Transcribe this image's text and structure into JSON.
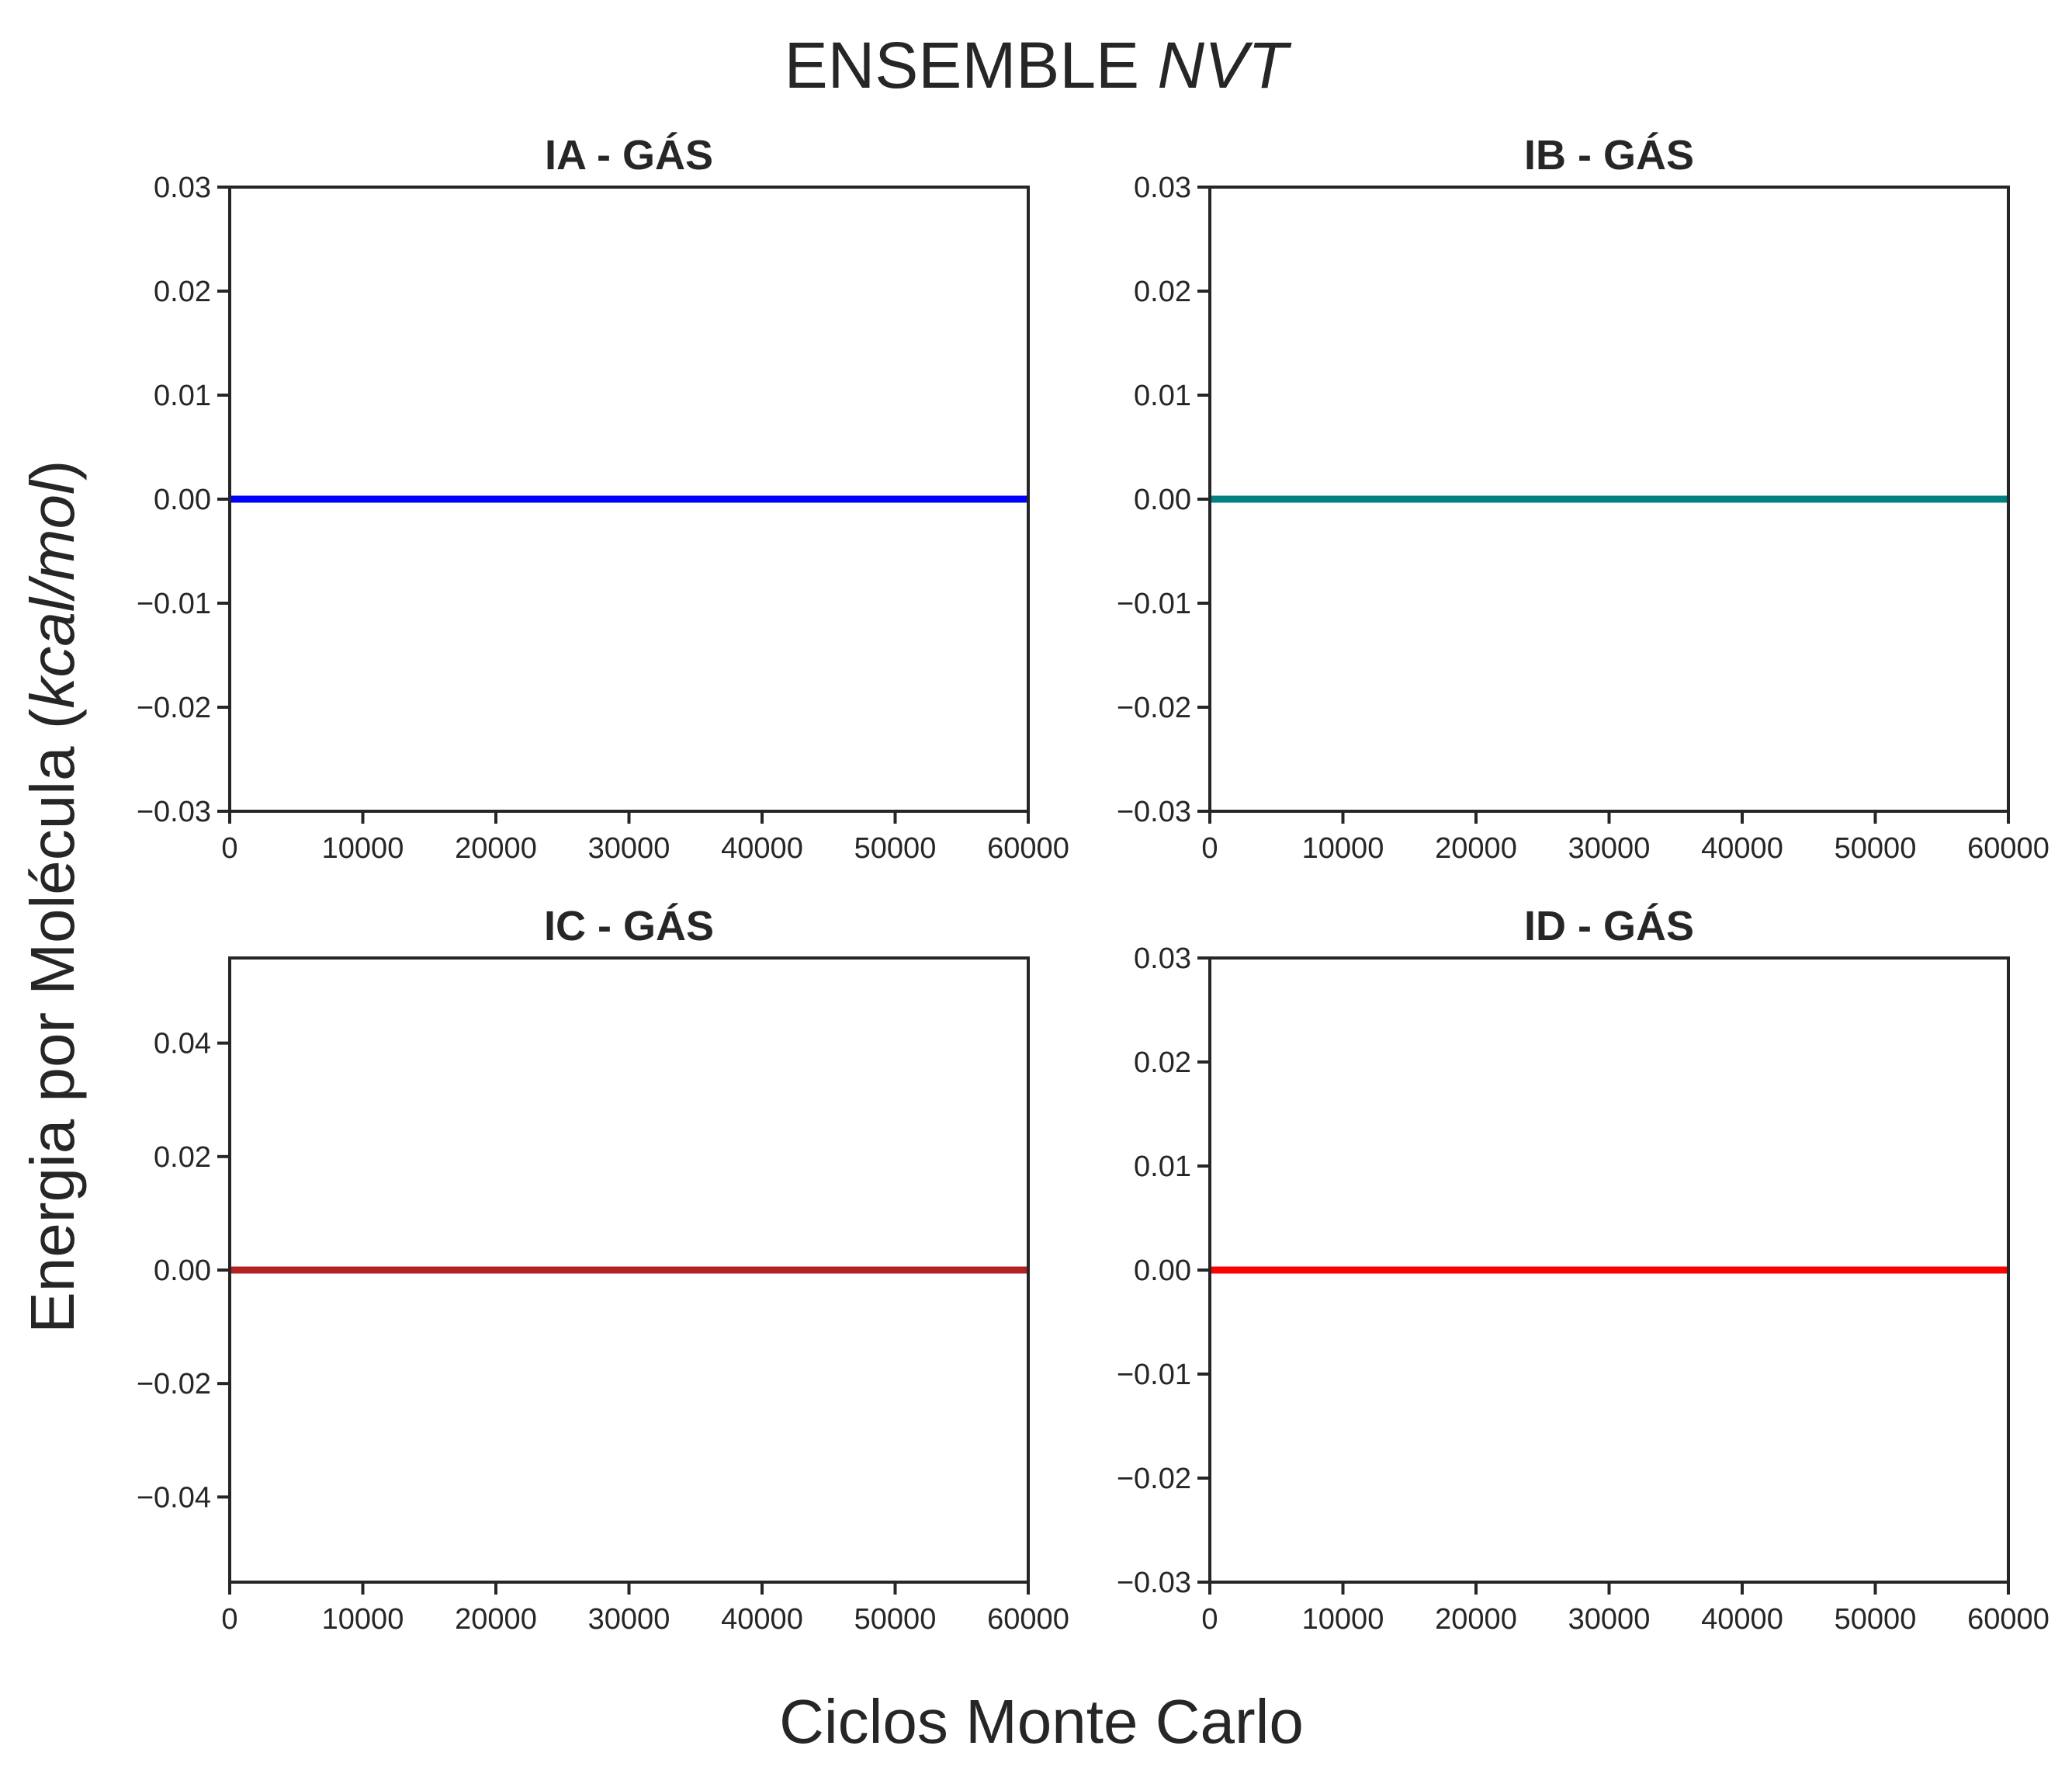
{
  "figure": {
    "title_main": "ENSEMBLE ",
    "title_italic": "NVT",
    "xlabel": "Ciclos Monte Carlo",
    "ylabel_main": "Energia por Molécula (",
    "ylabel_italic": "kcal/mol",
    "ylabel_end": ")"
  },
  "chart_data": [
    {
      "type": "line",
      "title": "IA - GÁS",
      "x": [
        0,
        60000
      ],
      "series": [
        {
          "values": [
            0,
            0
          ],
          "color": "#0000ff"
        }
      ],
      "xlim": [
        0,
        60000
      ],
      "ylim": [
        -0.03,
        0.03
      ],
      "xticks": [
        0,
        10000,
        20000,
        30000,
        40000,
        50000,
        60000
      ],
      "yticks": [
        0.03,
        0.02,
        0.01,
        0.0,
        -0.01,
        -0.02,
        -0.03
      ],
      "xtick_labels": [
        "0",
        "10000",
        "20000",
        "30000",
        "40000",
        "50000",
        "60000"
      ],
      "ytick_labels": [
        "0.03",
        "0.02",
        "0.01",
        "0.00",
        "−0.01",
        "−0.02",
        "−0.03"
      ],
      "grid": false
    },
    {
      "type": "line",
      "title": "IB - GÁS",
      "x": [
        0,
        60000
      ],
      "series": [
        {
          "values": [
            0,
            0
          ],
          "color": "#008080"
        }
      ],
      "xlim": [
        0,
        60000
      ],
      "ylim": [
        -0.03,
        0.03
      ],
      "xticks": [
        0,
        10000,
        20000,
        30000,
        40000,
        50000,
        60000
      ],
      "yticks": [
        0.03,
        0.02,
        0.01,
        0.0,
        -0.01,
        -0.02,
        -0.03
      ],
      "xtick_labels": [
        "0",
        "10000",
        "20000",
        "30000",
        "40000",
        "50000",
        "60000"
      ],
      "ytick_labels": [
        "0.03",
        "0.02",
        "0.01",
        "0.00",
        "−0.01",
        "−0.02",
        "−0.03"
      ],
      "grid": false
    },
    {
      "type": "line",
      "title": "IC - GÁS",
      "x": [
        0,
        60000
      ],
      "series": [
        {
          "values": [
            0,
            0
          ],
          "color": "#b22222"
        }
      ],
      "xlim": [
        0,
        60000
      ],
      "ylim": [
        -0.055,
        0.055
      ],
      "xticks": [
        0,
        10000,
        20000,
        30000,
        40000,
        50000,
        60000
      ],
      "yticks": [
        0.04,
        0.02,
        0.0,
        -0.02,
        -0.04
      ],
      "xtick_labels": [
        "0",
        "10000",
        "20000",
        "30000",
        "40000",
        "50000",
        "60000"
      ],
      "ytick_labels": [
        "0.04",
        "0.02",
        "0.00",
        "−0.02",
        "−0.04"
      ],
      "grid": false
    },
    {
      "type": "line",
      "title": "ID - GÁS",
      "x": [
        0,
        60000
      ],
      "series": [
        {
          "values": [
            0,
            0
          ],
          "color": "#ff0000"
        }
      ],
      "xlim": [
        0,
        60000
      ],
      "ylim": [
        -0.03,
        0.03
      ],
      "xticks": [
        0,
        10000,
        20000,
        30000,
        40000,
        50000,
        60000
      ],
      "yticks": [
        0.03,
        0.02,
        0.01,
        0.0,
        -0.01,
        -0.02,
        -0.03
      ],
      "xtick_labels": [
        "0",
        "10000",
        "20000",
        "30000",
        "40000",
        "50000",
        "60000"
      ],
      "ytick_labels": [
        "0.03",
        "0.02",
        "0.01",
        "0.00",
        "−0.01",
        "−0.02",
        "−0.03"
      ],
      "grid": false
    }
  ]
}
